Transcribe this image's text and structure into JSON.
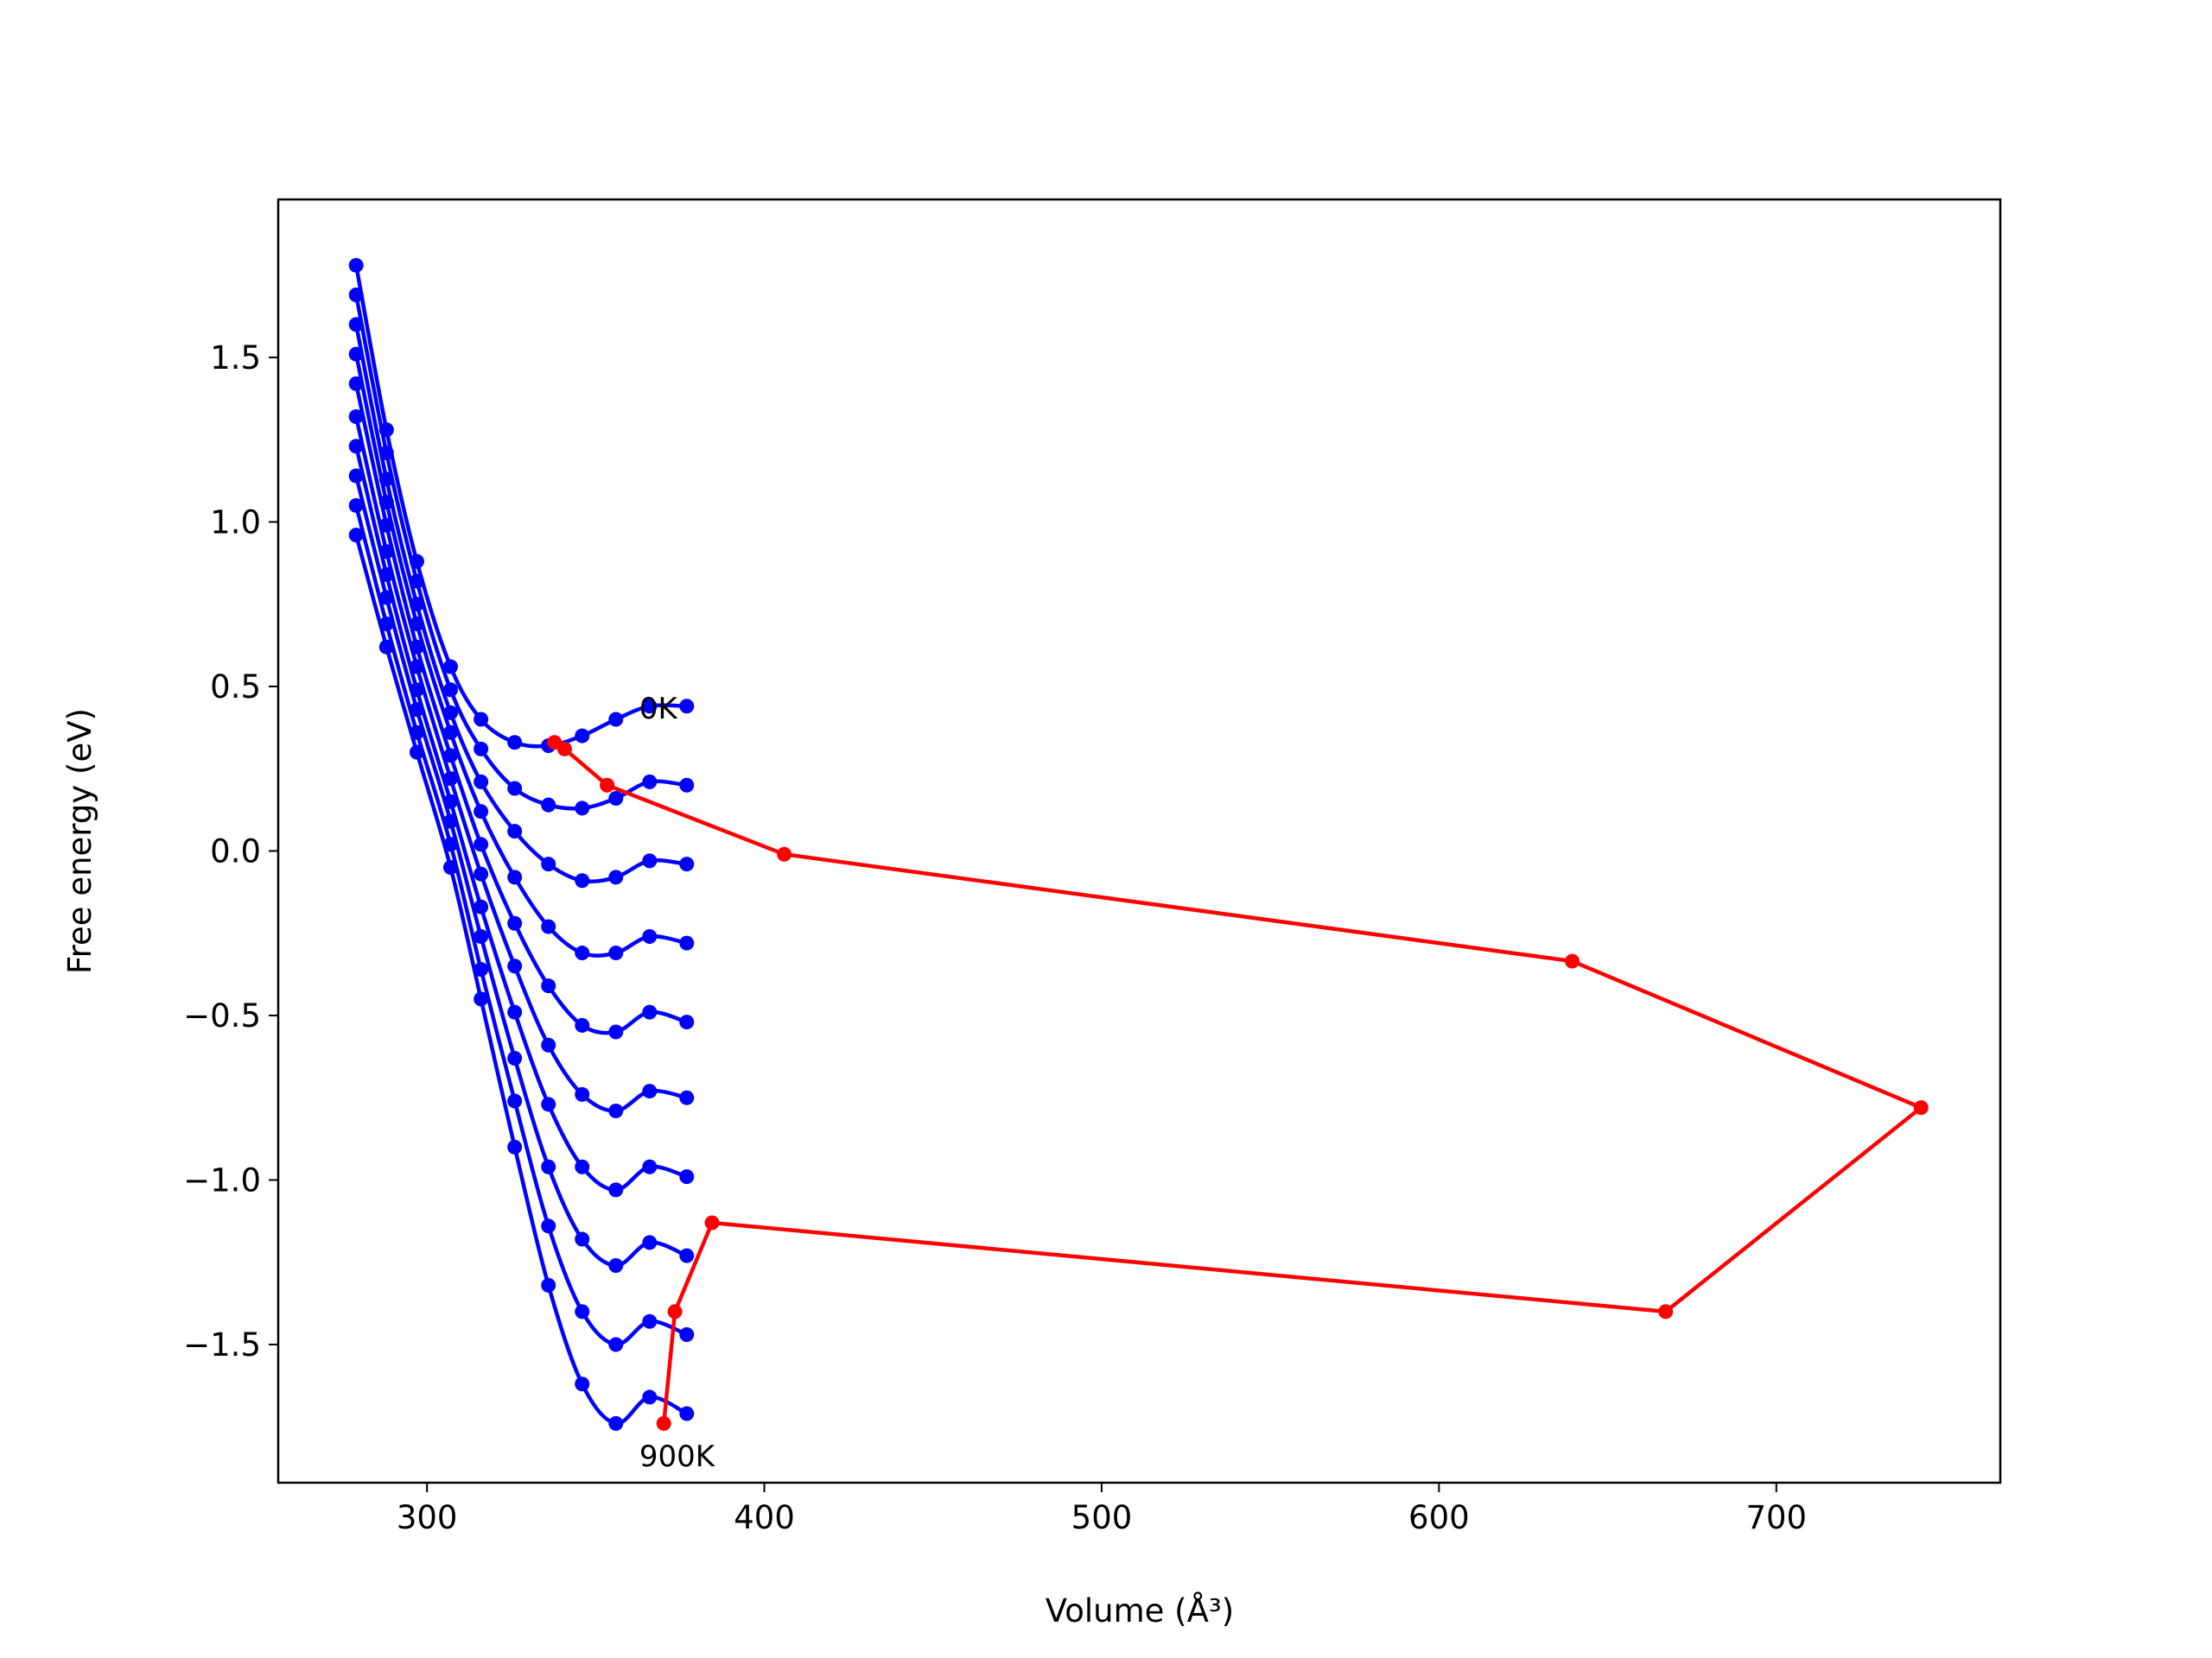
{
  "chart_data": {
    "type": "line",
    "xlabel": "Volume (Å³)",
    "ylabel": "Free energy (eV)",
    "xlim": [
      255.9,
      766.4
    ],
    "ylim": [
      -1.92,
      1.98
    ],
    "xticks": [
      300,
      400,
      500,
      600,
      700
    ],
    "yticks": [
      {
        "value": -1.5,
        "label": "−1.5"
      },
      {
        "value": -1.0,
        "label": "−1.0"
      },
      {
        "value": -0.5,
        "label": "−0.5"
      },
      {
        "value": 0.0,
        "label": "0.0"
      },
      0.5,
      {
        "value": 1.0,
        "label": "1.0"
      },
      1.5
    ],
    "grid": false,
    "x": [
      279,
      288,
      297,
      307,
      316,
      326,
      336,
      346,
      356,
      366,
      377
    ],
    "series": [
      {
        "color": "#0000ff",
        "smooth": true,
        "markers": true,
        "label": "0K",
        "values": [
          1.78,
          1.28,
          0.88,
          0.56,
          0.4,
          0.33,
          0.32,
          0.35,
          0.4,
          0.44,
          0.44
        ]
      },
      {
        "color": "#0000ff",
        "smooth": true,
        "markers": true,
        "values": [
          1.69,
          1.21,
          0.82,
          0.49,
          0.31,
          0.19,
          0.14,
          0.13,
          0.16,
          0.21,
          0.2
        ]
      },
      {
        "color": "#0000ff",
        "smooth": true,
        "markers": true,
        "values": [
          1.6,
          1.13,
          0.75,
          0.42,
          0.21,
          0.06,
          -0.04,
          -0.09,
          -0.08,
          -0.03,
          -0.04
        ]
      },
      {
        "color": "#0000ff",
        "smooth": true,
        "markers": true,
        "values": [
          1.51,
          1.06,
          0.69,
          0.36,
          0.12,
          -0.08,
          -0.23,
          -0.31,
          -0.31,
          -0.26,
          -0.28
        ]
      },
      {
        "color": "#0000ff",
        "smooth": true,
        "markers": true,
        "values": [
          1.42,
          0.99,
          0.62,
          0.29,
          0.02,
          -0.22,
          -0.41,
          -0.53,
          -0.55,
          -0.49,
          -0.52
        ]
      },
      {
        "color": "#0000ff",
        "smooth": true,
        "markers": true,
        "values": [
          1.32,
          0.91,
          0.56,
          0.22,
          -0.07,
          -0.35,
          -0.59,
          -0.74,
          -0.79,
          -0.73,
          -0.75
        ]
      },
      {
        "color": "#0000ff",
        "smooth": true,
        "markers": true,
        "values": [
          1.23,
          0.84,
          0.49,
          0.15,
          -0.17,
          -0.49,
          -0.77,
          -0.96,
          -1.03,
          -0.96,
          -0.99
        ]
      },
      {
        "color": "#0000ff",
        "smooth": true,
        "markers": true,
        "values": [
          1.14,
          0.77,
          0.43,
          0.09,
          -0.26,
          -0.63,
          -0.96,
          -1.18,
          -1.26,
          -1.19,
          -1.23
        ]
      },
      {
        "color": "#0000ff",
        "smooth": true,
        "markers": true,
        "values": [
          1.05,
          0.69,
          0.36,
          0.02,
          -0.36,
          -0.76,
          -1.14,
          -1.4,
          -1.5,
          -1.43,
          -1.47
        ]
      },
      {
        "color": "#0000ff",
        "smooth": true,
        "markers": true,
        "label": "900K",
        "values": [
          0.96,
          0.62,
          0.3,
          -0.05,
          -0.45,
          -0.9,
          -1.32,
          -1.62,
          -1.74,
          -1.66,
          -1.71
        ]
      },
      {
        "color": "#ff0000",
        "smooth": false,
        "markers": true,
        "x": [
          337.8,
          340.8,
          353.4,
          405.9,
          639.5,
          742.9,
          667.2,
          384.5,
          373.5,
          370.2
        ],
        "values": [
          0.33,
          0.31,
          0.2,
          -0.01,
          -0.335,
          -0.78,
          -1.4,
          -1.13,
          -1.4,
          -1.74
        ]
      }
    ]
  }
}
